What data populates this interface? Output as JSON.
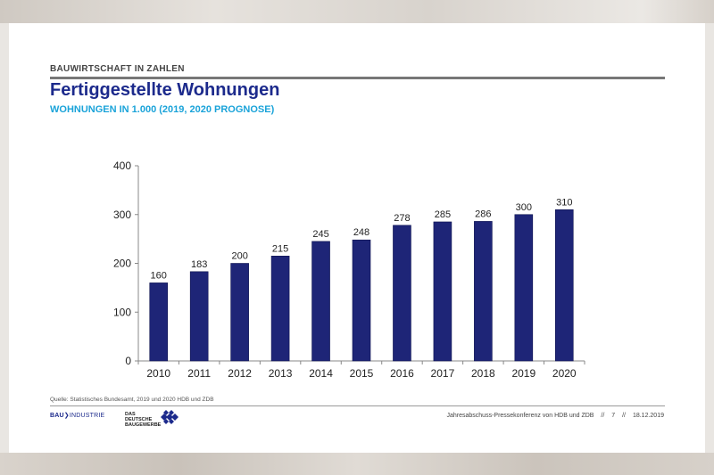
{
  "header": {
    "section": "BAUWIRTSCHAFT IN ZAHLEN",
    "title": "Fertiggestellte Wohnungen",
    "subtitle": "WOHNUNGEN IN 1.000 (2019, 2020 PROGNOSE)"
  },
  "chart_data": {
    "type": "bar",
    "categories": [
      "2010",
      "2011",
      "2012",
      "2013",
      "2014",
      "2015",
      "2016",
      "2017",
      "2018",
      "2019",
      "2020"
    ],
    "values": [
      160,
      183,
      200,
      215,
      245,
      248,
      278,
      285,
      286,
      300,
      310
    ],
    "title": "Fertiggestellte Wohnungen",
    "subtitle": "WOHNUNGEN IN 1.000 (2019, 2020 PROGNOSE)",
    "xlabel": "",
    "ylabel": "",
    "ylim": [
      0,
      400
    ],
    "yticks": [
      0,
      100,
      200,
      300,
      400
    ],
    "grid": false,
    "legend": "none",
    "bar_color": "#1e2577"
  },
  "footer": {
    "source": "Quelle: Statistisches Bundesamt, 2019 und 2020 HDB und ZDB",
    "logo_left_bold": "BAU",
    "logo_left_rest": "INDUSTRIE",
    "logo_right": "DAS DEUTSCHE BAUGEWERBE",
    "event": "Jahresabschuss-Pressekonferenz von HDB und ZDB",
    "sep1": "//",
    "page": "7",
    "sep2": "//",
    "date": "18.12.2019"
  },
  "colors": {
    "title": "#1c2a8c",
    "subtitle": "#1aa3d9",
    "bar": "#1e2577"
  }
}
